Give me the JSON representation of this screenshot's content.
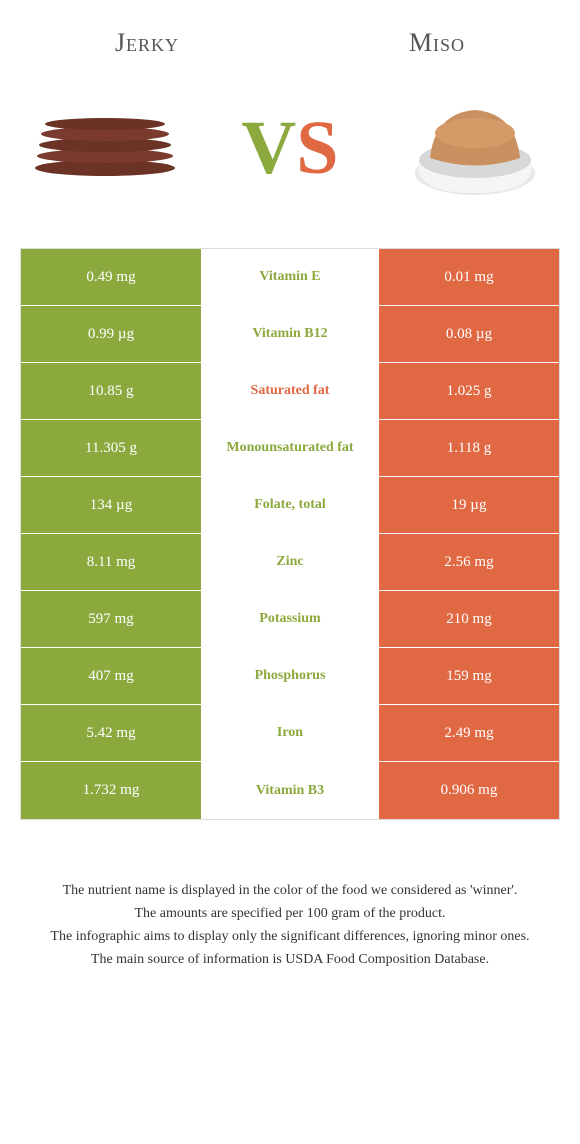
{
  "colors": {
    "left": "#8ca93e",
    "right": "#e06843",
    "left_text": "#8ca93e",
    "right_text": "#e06843"
  },
  "header": {
    "left_title": "Jerky",
    "right_title": "Miso"
  },
  "vs": {
    "v": "V",
    "s": "S"
  },
  "rows": [
    {
      "left": "0.49 mg",
      "label": "Vitamin E",
      "right": "0.01 mg",
      "winner": "left"
    },
    {
      "left": "0.99 µg",
      "label": "Vitamin B12",
      "right": "0.08 µg",
      "winner": "left"
    },
    {
      "left": "10.85 g",
      "label": "Saturated fat",
      "right": "1.025 g",
      "winner": "right"
    },
    {
      "left": "11.305 g",
      "label": "Monounsaturated fat",
      "right": "1.118 g",
      "winner": "left"
    },
    {
      "left": "134 µg",
      "label": "Folate, total",
      "right": "19 µg",
      "winner": "left"
    },
    {
      "left": "8.11 mg",
      "label": "Zinc",
      "right": "2.56 mg",
      "winner": "left"
    },
    {
      "left": "597 mg",
      "label": "Potassium",
      "right": "210 mg",
      "winner": "left"
    },
    {
      "left": "407 mg",
      "label": "Phosphorus",
      "right": "159 mg",
      "winner": "left"
    },
    {
      "left": "5.42 mg",
      "label": "Iron",
      "right": "2.49 mg",
      "winner": "left"
    },
    {
      "left": "1.732 mg",
      "label": "Vitamin B3",
      "right": "0.906 mg",
      "winner": "left"
    }
  ],
  "footer": {
    "line1": "The nutrient name is displayed in the color of the food we considered as 'winner'.",
    "line2": "The amounts are specified per 100 gram of the product.",
    "line3": "The infographic aims to display only the significant differences, ignoring minor ones.",
    "line4": "The main source of information is USDA Food Composition Database."
  }
}
